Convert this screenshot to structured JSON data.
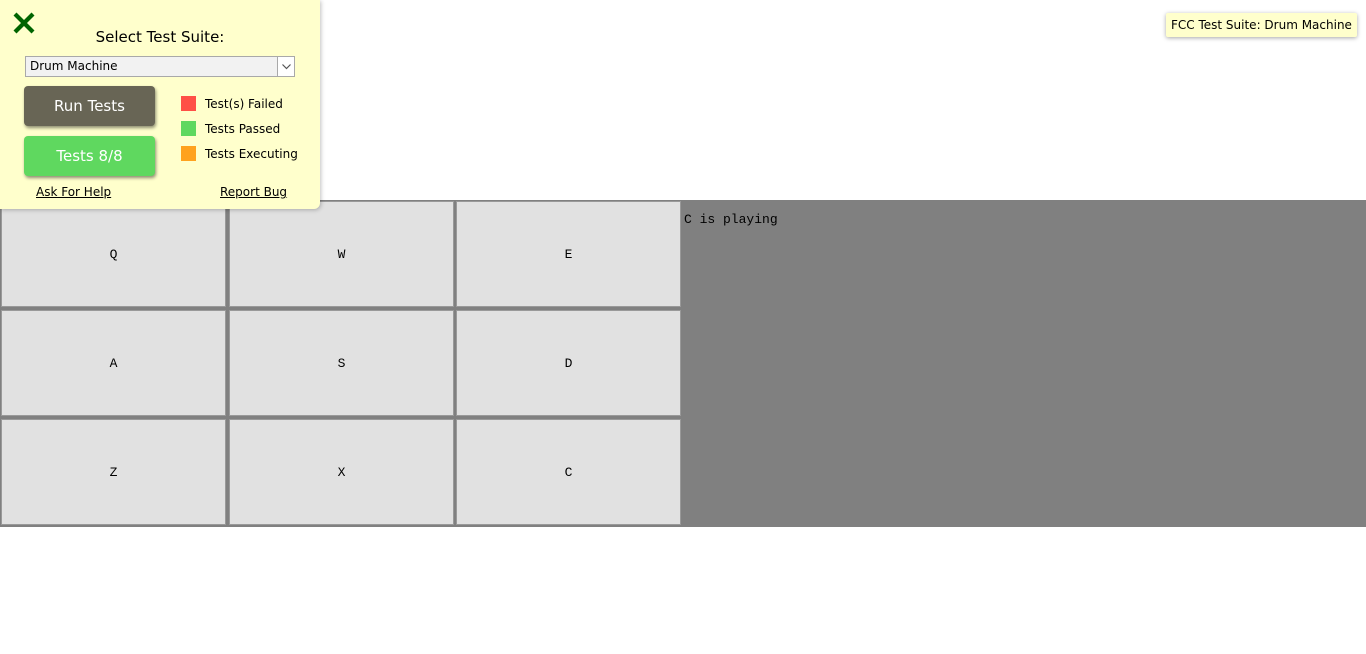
{
  "tooltip": {
    "text": "FCC Test Suite: Drum Machine"
  },
  "test_panel": {
    "close_icon": "close-x-icon",
    "suite_label": "Select Test Suite:",
    "suite_select_value": "Drum Machine",
    "run_tests_label": "Run Tests",
    "tests_result_label": "Tests 8/8",
    "legend": [
      {
        "label": "Test(s) Failed",
        "color": "#ff5046"
      },
      {
        "label": "Tests Passed",
        "color": "#5fd85f"
      },
      {
        "label": "Tests Executing",
        "color": "#ffa21e"
      }
    ],
    "help_link": "Ask For Help",
    "bug_link": "Report Bug",
    "colors": {
      "panel_bg": "#ffffcc",
      "close_icon": "#006400",
      "run_button": "#686555",
      "result_button": "#5fd85f"
    }
  },
  "drum_machine": {
    "pads": [
      "Q",
      "W",
      "E",
      "A",
      "S",
      "D",
      "Z",
      "X",
      "C"
    ],
    "display_text": "C is playing",
    "colors": {
      "background": "#808080",
      "pad": "#e1e1e1"
    }
  }
}
